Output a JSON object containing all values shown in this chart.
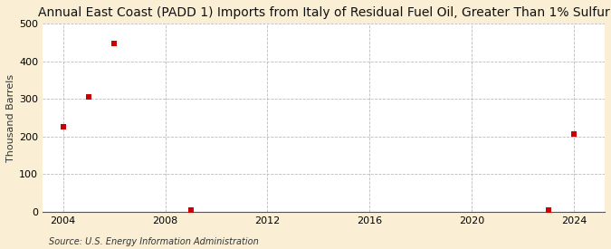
{
  "title": "Annual East Coast (PADD 1) Imports from Italy of Residual Fuel Oil, Greater Than 1% Sulfur",
  "ylabel": "Thousand Barrels",
  "source": "Source: U.S. Energy Information Administration",
  "fig_background": "#faefd4",
  "plot_background": "#ffffff",
  "data_points": [
    {
      "year": 2004,
      "value": 225
    },
    {
      "year": 2005,
      "value": 305
    },
    {
      "year": 2006,
      "value": 447
    },
    {
      "year": 2009,
      "value": 4
    },
    {
      "year": 2023,
      "value": 4
    },
    {
      "year": 2024,
      "value": 207
    }
  ],
  "marker_color": "#cc0000",
  "marker_size": 4,
  "xlim": [
    2003.2,
    2025.2
  ],
  "ylim": [
    0,
    500
  ],
  "xticks": [
    2004,
    2008,
    2012,
    2016,
    2020,
    2024
  ],
  "yticks": [
    0,
    100,
    200,
    300,
    400,
    500
  ],
  "grid_color": "#bbbbbb",
  "grid_style": "--",
  "title_fontsize": 10,
  "label_fontsize": 8,
  "tick_fontsize": 8,
  "source_fontsize": 7
}
